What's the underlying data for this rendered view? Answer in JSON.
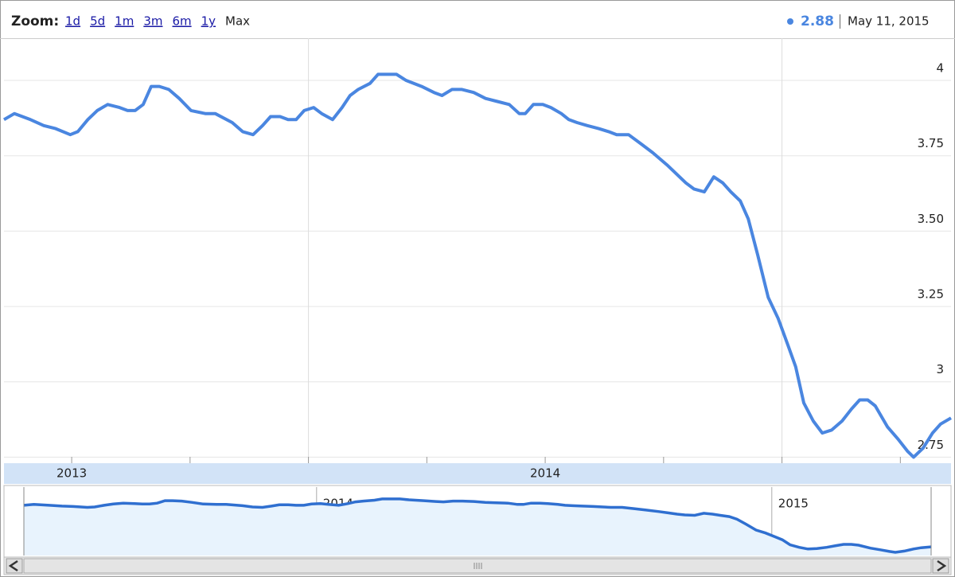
{
  "chart_data": {
    "type": "line",
    "zoom_label": "Zoom:",
    "zoom_options": [
      "1d",
      "5d",
      "1m",
      "3m",
      "6m",
      "1y",
      "Max"
    ],
    "current_value": "2.88",
    "current_date": "May 11, 2015",
    "color": "#4a86e0",
    "x": [
      2012.857,
      2012.879,
      2012.913,
      2012.941,
      2012.966,
      2012.997,
      2013.013,
      2013.034,
      2013.054,
      2013.076,
      2013.101,
      2013.118,
      2013.134,
      2013.151,
      2013.168,
      2013.185,
      2013.205,
      2013.227,
      2013.252,
      2013.282,
      2013.303,
      2013.339,
      2013.361,
      2013.383,
      2013.403,
      2013.42,
      2013.44,
      2013.457,
      2013.474,
      2013.491,
      2013.511,
      2013.528,
      2013.551,
      2013.571,
      2013.588,
      2013.605,
      2013.63,
      2013.647,
      2013.669,
      2013.686,
      2013.706,
      2013.739,
      2013.765,
      2013.782,
      2013.803,
      2013.824,
      2013.849,
      2013.874,
      2013.899,
      2013.924,
      2013.945,
      2013.958,
      2013.975,
      2013.995,
      2014.012,
      2014.034,
      2014.05,
      2014.067,
      2014.089,
      2014.113,
      2014.134,
      2014.151,
      2014.176,
      2014.202,
      2014.227,
      2014.257,
      2014.277,
      2014.297,
      2014.314,
      2014.336,
      2014.356,
      2014.375,
      2014.392,
      2014.412,
      2014.429,
      2014.449,
      2014.471,
      2014.492,
      2014.513,
      2014.529,
      2014.546,
      2014.566,
      2014.585,
      2014.605,
      2014.627,
      2014.647,
      2014.664,
      2014.681,
      2014.697,
      2014.723,
      2014.745,
      2014.765,
      2014.778,
      2014.798,
      2014.818,
      2014.835,
      2014.857
    ],
    "values": [
      3.87,
      3.89,
      3.87,
      3.85,
      3.84,
      3.82,
      3.83,
      3.87,
      3.9,
      3.92,
      3.91,
      3.9,
      3.9,
      3.92,
      3.98,
      3.98,
      3.97,
      3.94,
      3.9,
      3.89,
      3.89,
      3.86,
      3.83,
      3.82,
      3.85,
      3.88,
      3.88,
      3.87,
      3.87,
      3.9,
      3.91,
      3.89,
      3.87,
      3.91,
      3.95,
      3.97,
      3.99,
      4.02,
      4.02,
      4.02,
      4.0,
      3.98,
      3.96,
      3.95,
      3.97,
      3.97,
      3.96,
      3.94,
      3.93,
      3.92,
      3.89,
      3.89,
      3.92,
      3.92,
      3.91,
      3.89,
      3.87,
      3.86,
      3.85,
      3.84,
      3.83,
      3.82,
      3.82,
      3.79,
      3.76,
      3.72,
      3.69,
      3.66,
      3.64,
      3.63,
      3.68,
      3.66,
      3.63,
      3.6,
      3.54,
      3.42,
      3.28,
      3.21,
      3.12,
      3.05,
      2.93,
      2.87,
      2.83,
      2.84,
      2.87,
      2.91,
      2.94,
      2.94,
      2.92,
      2.85,
      2.81,
      2.77,
      2.75,
      2.78,
      2.83,
      2.86,
      2.88
    ],
    "xlim": [
      2012.857,
      2014.857
    ],
    "xticks": [
      2013,
      2014
    ],
    "xminor": [
      2013.25,
      2013.5,
      2013.75,
      2014.25,
      2014.5,
      2014.75
    ],
    "xgrid": [
      2013.5,
      2014.5
    ],
    "ylim": [
      2.73,
      4.14
    ],
    "yticks": [
      4,
      3.75,
      {
        "value": 3.5,
        "label": "3.50"
      },
      3.25,
      3,
      2.75
    ],
    "grid": true,
    "navigator": {
      "xlim": [
        2013.357,
        2015.35
      ],
      "xticks": [
        2014,
        2015
      ]
    }
  }
}
